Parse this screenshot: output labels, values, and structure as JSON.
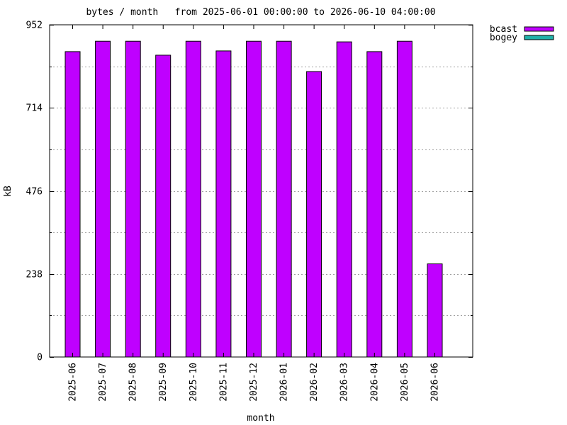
{
  "chart_data": {
    "type": "bar",
    "title": "bytes / month   from 2025-06-01 00:00:00 to 2026-06-10 04:00:00",
    "xlabel": "month",
    "ylabel": "kB",
    "ylim": [
      0,
      952
    ],
    "yticks": [
      "0",
      "238",
      "476",
      "714",
      "952"
    ],
    "grid": true,
    "legend_position": "top-right",
    "categories": [
      "2025-06",
      "2025-07",
      "2025-08",
      "2025-09",
      "2025-10",
      "2025-11",
      "2025-12",
      "2026-01",
      "2026-02",
      "2026-03",
      "2026-04",
      "2026-05",
      "2026-06"
    ],
    "series": [
      {
        "name": "bcast",
        "color": "#bf00ff",
        "values": [
          875,
          905,
          905,
          865,
          905,
          877,
          905,
          905,
          818,
          903,
          875,
          905,
          267
        ]
      },
      {
        "name": "bogey",
        "color": "#20b2aa",
        "values": [
          0,
          0,
          0,
          0,
          0,
          0,
          0,
          0,
          0,
          0,
          0,
          0,
          0
        ]
      }
    ]
  }
}
